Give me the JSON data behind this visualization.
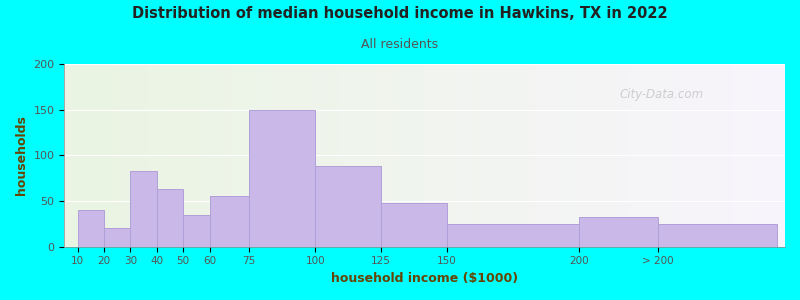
{
  "title": "Distribution of median household income in Hawkins, TX in 2022",
  "subtitle": "All residents",
  "xlabel": "household income ($1000)",
  "ylabel": "households",
  "background_outer": "#00FFFF",
  "background_inner_left": "#eaf5e2",
  "background_inner_right": "#f8f4fc",
  "bar_color": "#c9b8e8",
  "bar_edge_color": "#b0a0d8",
  "title_color": "#222222",
  "subtitle_color": "#555555",
  "axis_label_color": "#664400",
  "tick_label_color": "#555555",
  "watermark": "City-Data.com",
  "categories": [
    "10",
    "20",
    "30",
    "40",
    "50",
    "60",
    "75",
    "100",
    "125",
    "150",
    "200",
    "> 200"
  ],
  "values": [
    40,
    20,
    83,
    63,
    35,
    55,
    150,
    88,
    48,
    25,
    33,
    25
  ],
  "bar_lefts": [
    10,
    20,
    30,
    40,
    50,
    60,
    75,
    100,
    125,
    150,
    200,
    230
  ],
  "bar_widths": [
    10,
    10,
    10,
    10,
    10,
    15,
    25,
    25,
    25,
    50,
    30,
    45
  ],
  "ylim": [
    0,
    200
  ],
  "yticks": [
    0,
    50,
    100,
    150,
    200
  ],
  "xlim_left": 5,
  "xlim_right": 278
}
